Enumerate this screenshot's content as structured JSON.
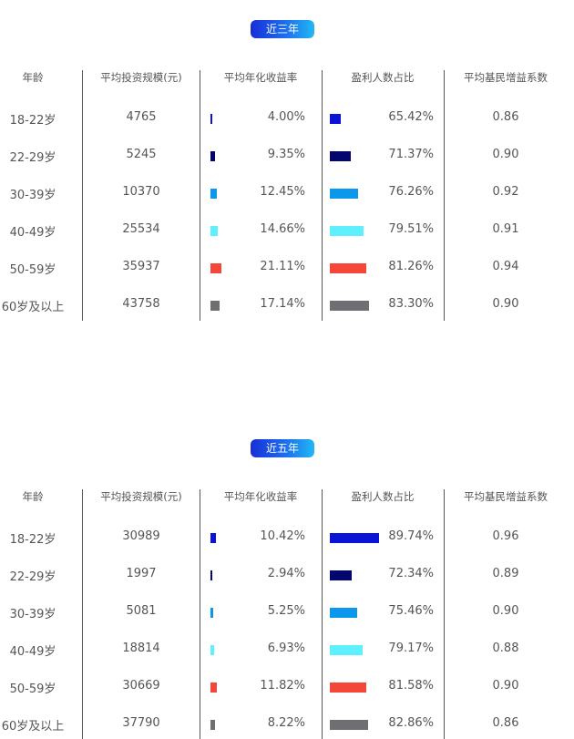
{
  "headers": [
    "年龄",
    "平均投资规模(元)",
    "平均年化收益率",
    "盈利人数占比",
    "平均基民增益系数"
  ],
  "colors": [
    "#0a14d6",
    "#03066e",
    "#0b98ec",
    "#5ff0ff",
    "#f4473a",
    "#6f6f73"
  ],
  "chart_data": [
    {
      "type": "table",
      "title": "近三年",
      "columns": [
        "年龄",
        "平均投资规模(元)",
        "平均年化收益率",
        "盈利人数占比",
        "平均基民增益系数"
      ],
      "rows": [
        {
          "age": "18-22岁",
          "scale": "4765",
          "ret": 4.0,
          "ret_label": "4.00%",
          "win": 65.42,
          "win_label": "65.42%",
          "coef": "0.86"
        },
        {
          "age": "22-29岁",
          "scale": "5245",
          "ret": 9.35,
          "ret_label": "9.35%",
          "win": 71.37,
          "win_label": "71.37%",
          "coef": "0.90"
        },
        {
          "age": "30-39岁",
          "scale": "10370",
          "ret": 12.45,
          "ret_label": "12.45%",
          "win": 76.26,
          "win_label": "76.26%",
          "coef": "0.92"
        },
        {
          "age": "40-49岁",
          "scale": "25534",
          "ret": 14.66,
          "ret_label": "14.66%",
          "win": 79.51,
          "win_label": "79.51%",
          "coef": "0.91"
        },
        {
          "age": "50-59岁",
          "scale": "35937",
          "ret": 21.11,
          "ret_label": "21.11%",
          "win": 81.26,
          "win_label": "81.26%",
          "coef": "0.94"
        },
        {
          "age": "60岁及以上",
          "scale": "43758",
          "ret": 17.14,
          "ret_label": "17.14%",
          "win": 83.3,
          "win_label": "83.30%",
          "coef": "0.90"
        }
      ]
    },
    {
      "type": "table",
      "title": "近五年",
      "columns": [
        "年龄",
        "平均投资规模(元)",
        "平均年化收益率",
        "盈利人数占比",
        "平均基民增益系数"
      ],
      "rows": [
        {
          "age": "18-22岁",
          "scale": "30989",
          "ret": 10.42,
          "ret_label": "10.42%",
          "win": 89.74,
          "win_label": "89.74%",
          "coef": "0.96"
        },
        {
          "age": "22-29岁",
          "scale": "1997",
          "ret": 2.94,
          "ret_label": "2.94%",
          "win": 72.34,
          "win_label": "72.34%",
          "coef": "0.89"
        },
        {
          "age": "30-39岁",
          "scale": "5081",
          "ret": 5.25,
          "ret_label": "5.25%",
          "win": 75.46,
          "win_label": "75.46%",
          "coef": "0.90"
        },
        {
          "age": "40-49岁",
          "scale": "18814",
          "ret": 6.93,
          "ret_label": "6.93%",
          "win": 79.17,
          "win_label": "79.17%",
          "coef": "0.88"
        },
        {
          "age": "50-59岁",
          "scale": "30669",
          "ret": 11.82,
          "ret_label": "11.82%",
          "win": 81.58,
          "win_label": "81.58%",
          "coef": "0.90"
        },
        {
          "age": "60岁及以上",
          "scale": "37790",
          "ret": 8.22,
          "ret_label": "8.22%",
          "win": 82.86,
          "win_label": "82.86%",
          "coef": "0.86"
        }
      ]
    }
  ]
}
